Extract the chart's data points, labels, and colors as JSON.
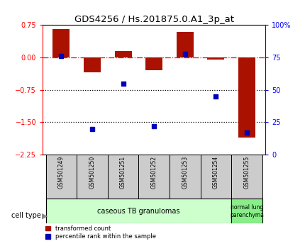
{
  "title": "GDS4256 / Hs.201875.0.A1_3p_at",
  "samples": [
    "GSM501249",
    "GSM501250",
    "GSM501251",
    "GSM501252",
    "GSM501253",
    "GSM501254",
    "GSM501255"
  ],
  "bar_values": [
    0.65,
    -0.35,
    0.15,
    -0.3,
    0.6,
    -0.05,
    -1.85
  ],
  "dot_values": [
    76,
    20,
    55,
    22,
    78,
    45,
    17
  ],
  "left_ylim": [
    -2.25,
    0.75
  ],
  "left_yticks": [
    0.75,
    0,
    -0.75,
    -1.5,
    -2.25
  ],
  "right_yticks": [
    100,
    75,
    50,
    25,
    0
  ],
  "right_ylim": [
    0,
    100
  ],
  "bar_color": "#aa1100",
  "dot_color": "#0000bb",
  "dotted_hlines": [
    -0.75,
    -1.5
  ],
  "legend_bar_label": "transformed count",
  "legend_dot_label": "percentile rank within the sample",
  "cell_type_label": "cell type",
  "bar_width": 0.55,
  "bg_color": "#ffffff",
  "sample_box_color": "#cccccc",
  "ct1_color": "#ccffcc",
  "ct2_color": "#88ee88"
}
